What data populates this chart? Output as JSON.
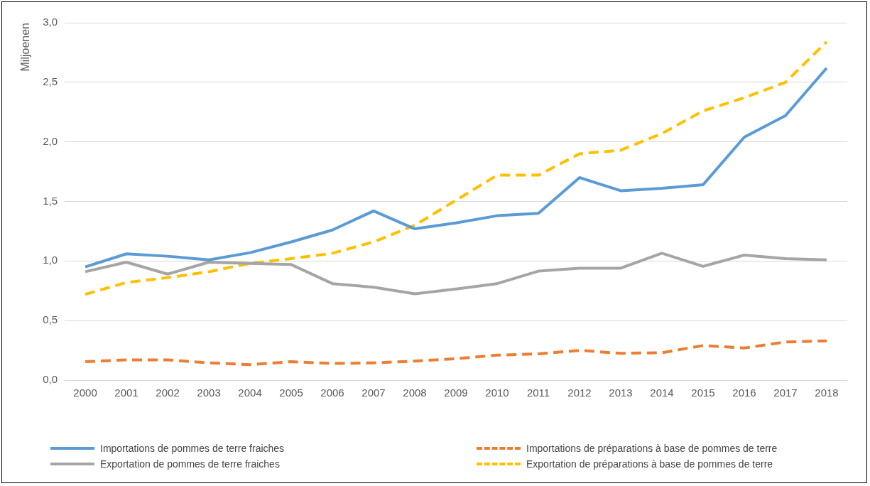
{
  "chart_data": {
    "type": "line",
    "ylabel": "Miljoenen",
    "categories": [
      "2000",
      "2001",
      "2002",
      "2003",
      "2004",
      "2005",
      "2006",
      "2007",
      "2008",
      "2009",
      "2010",
      "2011",
      "2012",
      "2013",
      "2014",
      "2015",
      "2016",
      "2017",
      "2018"
    ],
    "series": [
      {
        "name": "Importations de pommes de terre fraiches",
        "color": "#5b9bd5",
        "line_style": "solid",
        "values": [
          0.95,
          1.06,
          1.04,
          1.01,
          1.07,
          1.16,
          1.26,
          1.42,
          1.27,
          1.32,
          1.38,
          1.4,
          1.7,
          1.59,
          1.61,
          1.64,
          2.04,
          2.22,
          2.62
        ]
      },
      {
        "name": "Importations de préparations à base de pommes de terre",
        "color": "#ed7d31",
        "line_style": "dashed",
        "values": [
          0.155,
          0.17,
          0.17,
          0.145,
          0.13,
          0.155,
          0.14,
          0.145,
          0.16,
          0.18,
          0.21,
          0.22,
          0.25,
          0.225,
          0.23,
          0.29,
          0.27,
          0.32,
          0.33
        ]
      },
      {
        "name": "Exportation de pommes de terre fraiches",
        "color": "#a5a5a5",
        "line_style": "solid",
        "values": [
          0.91,
          0.99,
          0.89,
          0.99,
          0.98,
          0.97,
          0.81,
          0.78,
          0.725,
          0.765,
          0.81,
          0.915,
          0.94,
          0.94,
          1.065,
          0.955,
          1.05,
          1.02,
          1.01
        ]
      },
      {
        "name": "Exportation de préparations à base de pommes de terre",
        "color": "#ffc000",
        "line_style": "dashed",
        "values": [
          0.72,
          0.82,
          0.86,
          0.91,
          0.98,
          1.02,
          1.065,
          1.16,
          1.3,
          1.51,
          1.72,
          1.72,
          1.9,
          1.93,
          2.07,
          2.26,
          2.37,
          2.5,
          2.84
        ]
      }
    ],
    "ylim": [
      0,
      3
    ],
    "yticks": [
      {
        "value": 0,
        "label": "0,0"
      },
      {
        "value": 0.5,
        "label": "0,5"
      },
      {
        "value": 1,
        "label": "1,0"
      },
      {
        "value": 1.5,
        "label": "1,5"
      },
      {
        "value": 2,
        "label": "2,0"
      },
      {
        "value": 2.5,
        "label": "2,5"
      },
      {
        "value": 3,
        "label": "3,0"
      }
    ],
    "grid": "y",
    "legend": "bottom",
    "marker": "none"
  }
}
